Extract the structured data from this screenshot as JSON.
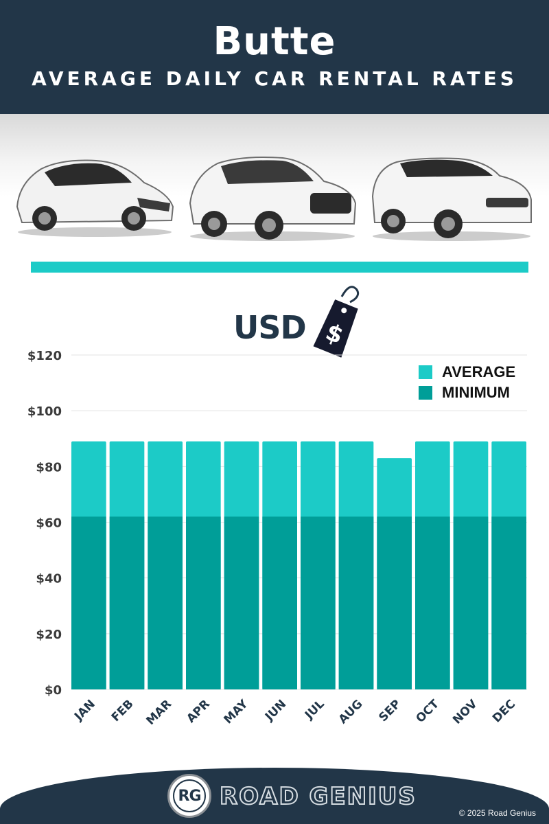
{
  "header": {
    "city": "Butte",
    "subtitle": "AVERAGE DAILY CAR RENTAL RATES"
  },
  "currency": {
    "label": "USD",
    "tag_symbol": "$"
  },
  "colors": {
    "header_bg": "#223648",
    "accent": "#1ccbc7",
    "average": "#1ccbc7",
    "minimum": "#009e98"
  },
  "chart_data": {
    "type": "bar",
    "stacked_overlay": true,
    "categories": [
      "JAN",
      "FEB",
      "MAR",
      "APR",
      "MAY",
      "JUN",
      "JUL",
      "AUG",
      "SEP",
      "OCT",
      "NOV",
      "DEC"
    ],
    "series": [
      {
        "name": "AVERAGE",
        "color": "#1ccbc7",
        "values": [
          89,
          89,
          89,
          89,
          89,
          89,
          89,
          89,
          83,
          89,
          89,
          89
        ]
      },
      {
        "name": "MINIMUM",
        "color": "#009e98",
        "values": [
          62,
          62,
          62,
          62,
          62,
          62,
          62,
          62,
          62,
          62,
          62,
          62
        ]
      }
    ],
    "yticks": [
      "$0",
      "$20",
      "$40",
      "$60",
      "$80",
      "$100",
      "$120"
    ],
    "ylim": [
      0,
      120
    ],
    "grid": true,
    "legend": "top-right"
  },
  "footer": {
    "logo_initials": "RG",
    "brand": "ROAD GENIUS",
    "copyright": "© 2025 Road Genius"
  }
}
